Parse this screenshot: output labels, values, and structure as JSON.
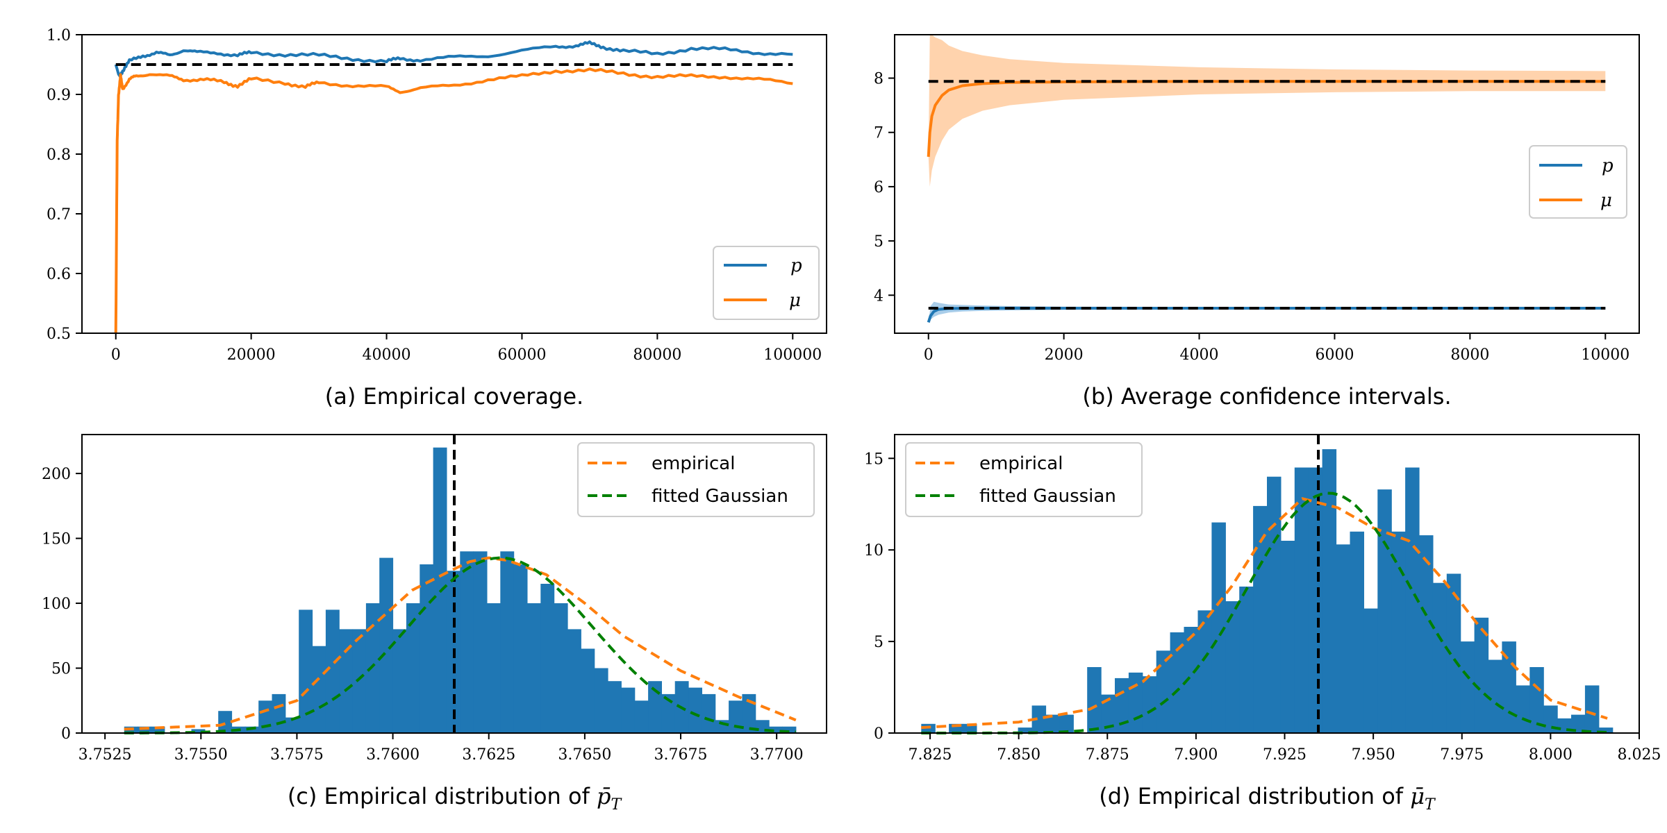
{
  "colors": {
    "blue": "#1f77b4",
    "orange": "#ff7f0e",
    "green": "#008000",
    "black": "#000000",
    "orange_band": "#ffd3ad",
    "blue_band": "#a9cde9"
  },
  "chart_data": [
    {
      "id": "a",
      "type": "line",
      "caption": "(a) Empirical coverage.",
      "xlim": [
        -5000,
        105000
      ],
      "ylim": [
        0.5,
        1.0
      ],
      "xticks": [
        0,
        20000,
        40000,
        60000,
        80000,
        100000
      ],
      "xtick_labels": [
        "0",
        "20000",
        "40000",
        "60000",
        "80000",
        "100000"
      ],
      "yticks": [
        0.5,
        0.6,
        0.7,
        0.8,
        0.9,
        1.0
      ],
      "ytick_labels": [
        "0.5",
        "0.6",
        "0.7",
        "0.8",
        "0.9",
        "1.0"
      ],
      "reference_line": {
        "value": 0.95,
        "x_range": [
          0,
          100000
        ]
      },
      "legend": {
        "placement": "lower-right",
        "entries": [
          "p",
          "μ"
        ]
      },
      "series": [
        {
          "name": "p",
          "color_key": "blue",
          "x": [
            0,
            500,
            1000,
            2000,
            4000,
            6000,
            8000,
            10000,
            12000,
            15000,
            18000,
            20000,
            25000,
            30000,
            35000,
            40000,
            42000,
            45000,
            50000,
            55000,
            60000,
            65000,
            68000,
            70000,
            72000,
            75000,
            80000,
            85000,
            90000,
            95000,
            100000
          ],
          "values": [
            0.95,
            0.93,
            0.94,
            0.955,
            0.965,
            0.97,
            0.965,
            0.975,
            0.97,
            0.97,
            0.965,
            0.97,
            0.967,
            0.965,
            0.96,
            0.955,
            0.96,
            0.958,
            0.962,
            0.965,
            0.973,
            0.98,
            0.982,
            0.985,
            0.98,
            0.972,
            0.968,
            0.977,
            0.975,
            0.97,
            0.967
          ]
        },
        {
          "name": "μ",
          "color_key": "orange",
          "x": [
            0,
            200,
            400,
            700,
            1000,
            2000,
            3000,
            5000,
            8000,
            10000,
            13000,
            16000,
            18000,
            20000,
            25000,
            28000,
            30000,
            35000,
            40000,
            42000,
            45000,
            50000,
            55000,
            60000,
            65000,
            70000,
            75000,
            80000,
            85000,
            90000,
            95000,
            100000
          ],
          "values": [
            0.5,
            0.82,
            0.9,
            0.93,
            0.91,
            0.925,
            0.93,
            0.935,
            0.93,
            0.925,
            0.925,
            0.92,
            0.915,
            0.925,
            0.92,
            0.912,
            0.92,
            0.915,
            0.912,
            0.905,
            0.91,
            0.915,
            0.925,
            0.93,
            0.94,
            0.94,
            0.935,
            0.93,
            0.93,
            0.93,
            0.925,
            0.918
          ]
        }
      ]
    },
    {
      "id": "b",
      "type": "line",
      "caption": "(b) Average confidence intervals.",
      "xlim": [
        -500,
        10500
      ],
      "ylim": [
        3.3,
        8.8
      ],
      "xticks": [
        0,
        2000,
        4000,
        6000,
        8000,
        10000
      ],
      "xtick_labels": [
        "0",
        "2000",
        "4000",
        "6000",
        "8000",
        "10000"
      ],
      "yticks": [
        4,
        5,
        6,
        7,
        8
      ],
      "ytick_labels": [
        "4",
        "5",
        "6",
        "7",
        "8"
      ],
      "reference_lines": [
        {
          "value": 7.94,
          "x_range": [
            0,
            10000
          ]
        },
        {
          "value": 3.76,
          "x_range": [
            0,
            10000
          ]
        }
      ],
      "legend": {
        "placement": "center-right",
        "entries": [
          "p",
          "μ"
        ]
      },
      "series": [
        {
          "name": "p",
          "color_key": "blue",
          "x": [
            0,
            30,
            80,
            150,
            300,
            500,
            800,
            1200,
            2000,
            4000,
            6000,
            8000,
            10000
          ],
          "values": [
            3.5,
            3.62,
            3.7,
            3.74,
            3.755,
            3.758,
            3.76,
            3.76,
            3.76,
            3.76,
            3.76,
            3.76,
            3.76
          ],
          "band_lower": [
            3.5,
            3.55,
            3.6,
            3.64,
            3.68,
            3.7,
            3.71,
            3.72,
            3.73,
            3.735,
            3.74,
            3.74,
            3.74
          ],
          "band_upper": [
            3.5,
            3.8,
            3.88,
            3.86,
            3.83,
            3.82,
            3.81,
            3.8,
            3.79,
            3.785,
            3.78,
            3.78,
            3.78
          ]
        },
        {
          "name": "μ",
          "color_key": "orange",
          "x": [
            0,
            20,
            50,
            100,
            200,
            300,
            500,
            800,
            1200,
            2000,
            4000,
            6000,
            8000,
            10000
          ],
          "values": [
            6.55,
            7.0,
            7.3,
            7.5,
            7.68,
            7.78,
            7.86,
            7.9,
            7.92,
            7.93,
            7.94,
            7.94,
            7.94,
            7.94
          ],
          "band_lower": [
            6.55,
            6.0,
            6.3,
            6.55,
            6.85,
            7.05,
            7.25,
            7.4,
            7.5,
            7.6,
            7.7,
            7.74,
            7.76,
            7.76
          ],
          "band_upper": [
            6.55,
            8.8,
            8.8,
            8.75,
            8.7,
            8.6,
            8.5,
            8.42,
            8.35,
            8.28,
            8.2,
            8.16,
            8.14,
            8.13
          ]
        }
      ]
    },
    {
      "id": "c",
      "type": "bar",
      "caption_prefix": "(c) Empirical distribution of ",
      "caption_symbol": "p̄",
      "caption_subscript": "T",
      "xlim": [
        3.7519,
        3.7713
      ],
      "ylim": [
        0,
        230
      ],
      "xticks": [
        3.7525,
        3.755,
        3.7575,
        3.76,
        3.7625,
        3.765,
        3.7675,
        3.77
      ],
      "xtick_labels": [
        "3.7525",
        "3.7550",
        "3.7575",
        "3.7600",
        "3.7625",
        "3.7650",
        "3.7675",
        "3.7700"
      ],
      "yticks": [
        0,
        50,
        100,
        150,
        200
      ],
      "ytick_labels": [
        "0",
        "50",
        "100",
        "150",
        "200"
      ],
      "vertical_line": 3.7616,
      "hist": {
        "bin_start": 3.753,
        "bin_width": 0.00035,
        "counts": [
          5,
          5,
          5,
          0,
          0,
          3,
          0,
          17,
          5,
          5,
          25,
          30,
          12,
          95,
          67,
          95,
          80,
          80,
          100,
          135,
          80,
          100,
          130,
          220,
          125,
          140,
          140,
          100,
          140,
          130,
          100,
          115,
          100,
          80,
          65,
          50,
          40,
          35,
          25,
          40,
          30,
          40,
          35,
          30,
          10,
          25,
          30,
          10,
          5,
          5
        ]
      },
      "curves": [
        {
          "name": "empirical",
          "color_key": "orange",
          "x": [
            3.753,
            3.7555,
            3.7575,
            3.759,
            3.7605,
            3.7615,
            3.762,
            3.7625,
            3.763,
            3.764,
            3.765,
            3.766,
            3.7675,
            3.769,
            3.7705
          ],
          "values": [
            3,
            6,
            25,
            70,
            110,
            125,
            132,
            135,
            133,
            122,
            100,
            75,
            48,
            28,
            10
          ]
        },
        {
          "name": "fitted Gaussian",
          "color_key": "green",
          "mean": 3.7628,
          "sd": 0.0024,
          "amplitude": 135,
          "x_range": [
            3.753,
            3.7705
          ]
        }
      ],
      "legend": {
        "placement": "top-right",
        "entries": [
          "empirical",
          "fitted Gaussian"
        ]
      }
    },
    {
      "id": "d",
      "type": "bar",
      "caption_prefix": "(d) Empirical distribution of ",
      "caption_symbol": "μ̄",
      "caption_subscript": "T",
      "xlim": [
        7.815,
        8.025
      ],
      "ylim": [
        0,
        16.3
      ],
      "xticks": [
        7.825,
        7.85,
        7.875,
        7.9,
        7.925,
        7.95,
        7.975,
        8.0,
        8.025
      ],
      "xtick_labels": [
        "7.825",
        "7.850",
        "7.875",
        "7.900",
        "7.925",
        "7.950",
        "7.975",
        "8.000",
        "8.025"
      ],
      "yticks": [
        0,
        5,
        10,
        15
      ],
      "ytick_labels": [
        "0",
        "5",
        "10",
        "15"
      ],
      "vertical_line": 7.9345,
      "hist": {
        "bin_start": 7.8225,
        "bin_width": 0.0039,
        "counts": [
          0.5,
          0,
          0.5,
          0.5,
          0,
          0,
          0,
          0.3,
          1.5,
          1,
          1,
          0,
          3.6,
          2.1,
          3,
          3.3,
          3.1,
          4.5,
          5.5,
          5.8,
          6.7,
          11.5,
          7.2,
          8,
          12.4,
          14,
          10.5,
          14.5,
          14.5,
          15.5,
          10.3,
          11,
          6.8,
          13.3,
          11,
          14.5,
          10.8,
          8.2,
          8.7,
          5,
          6.3,
          4,
          5,
          2.6,
          3.6,
          1.5,
          0.8,
          1,
          2.6,
          0.3
        ]
      },
      "curves": [
        {
          "name": "empirical",
          "color_key": "orange",
          "x": [
            7.8225,
            7.85,
            7.87,
            7.885,
            7.9,
            7.91,
            7.92,
            7.93,
            7.94,
            7.95,
            7.96,
            7.97,
            7.98,
            7.99,
            8.0,
            8.016
          ],
          "values": [
            0.3,
            0.6,
            1.3,
            2.8,
            5.5,
            8.0,
            11.0,
            12.8,
            12.3,
            11.2,
            10.5,
            8.3,
            5.8,
            3.6,
            1.8,
            0.8
          ]
        },
        {
          "name": "fitted Gaussian",
          "color_key": "green",
          "mean": 7.9375,
          "sd": 0.023,
          "amplitude": 13.1,
          "x_range": [
            7.8225,
            8.016
          ]
        }
      ],
      "legend": {
        "placement": "top-left",
        "entries": [
          "empirical",
          "fitted Gaussian"
        ]
      }
    }
  ]
}
